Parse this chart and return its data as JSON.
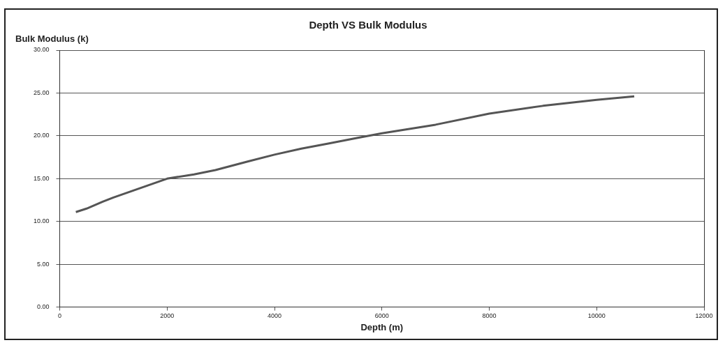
{
  "chart_data": {
    "type": "line",
    "title": "Depth VS Bulk Modulus",
    "xlabel": "Depth (m)",
    "ylabel": "Bulk Modulus (k)",
    "x": [
      300,
      500,
      800,
      1000,
      1500,
      2000,
      2500,
      2900,
      3500,
      4000,
      4500,
      5000,
      5500,
      6000,
      7000,
      8000,
      9000,
      10000,
      10700
    ],
    "series": [
      {
        "color": "#555555",
        "values": [
          11.1,
          11.5,
          12.3,
          12.8,
          13.9,
          15.0,
          15.5,
          16.0,
          17.0,
          17.8,
          18.5,
          19.1,
          19.7,
          20.3,
          21.3,
          22.6,
          23.5,
          24.2,
          24.6
        ]
      }
    ],
    "xlim": [
      0,
      12000
    ],
    "xticks": [
      0,
      2000,
      4000,
      6000,
      8000,
      10000,
      12000
    ],
    "ylim": [
      0,
      30
    ],
    "yticks": [
      {
        "value": 0,
        "label": "0.00"
      },
      {
        "value": 5,
        "label": "5.00"
      },
      {
        "value": 10,
        "label": "10.00"
      },
      {
        "value": 15,
        "label": "15.00"
      },
      {
        "value": 20,
        "label": "20.00"
      },
      {
        "value": 25,
        "label": "25.00"
      },
      {
        "value": 30,
        "label": "30.00"
      }
    ],
    "grid": "y",
    "legend": false,
    "marker": "none",
    "line_style": "solid"
  }
}
